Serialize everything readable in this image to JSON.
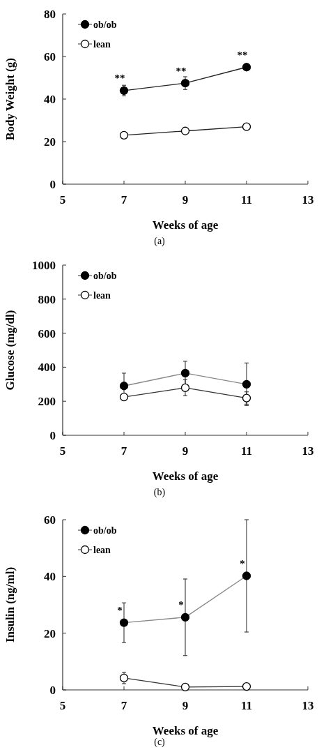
{
  "chart_data": [
    {
      "type": "line",
      "xlabel": "Weeks  of age",
      "ylabel": "Body Weight (g)",
      "x": [
        7,
        9,
        11
      ],
      "xlim": [
        5,
        13
      ],
      "xticks": [
        5,
        7,
        9,
        11,
        13
      ],
      "ylim": [
        0,
        80
      ],
      "yticks": [
        0,
        20,
        40,
        60,
        80
      ],
      "marker": "circle",
      "legend": "top left",
      "grid": false,
      "series": [
        {
          "name": "ob/ob",
          "color": "#000000",
          "values": [
            44,
            47.5,
            55
          ],
          "errors": [
            2.5,
            3,
            null
          ]
        },
        {
          "name": "lean",
          "color": "#ffffff",
          "values": [
            23,
            25,
            27
          ]
        }
      ],
      "annotations": [
        {
          "text": "**",
          "x": 7,
          "y": 44
        },
        {
          "text": "**",
          "x": 9,
          "y": 47.5
        },
        {
          "text": "**",
          "x": 11,
          "y": 55
        },
        "(a)"
      ]
    },
    {
      "type": "line",
      "xlabel": "Weeks  of age",
      "ylabel": "Glucose (mg/dl)",
      "x": [
        7,
        9,
        11
      ],
      "xlim": [
        5,
        13
      ],
      "xticks": [
        5,
        7,
        9,
        11,
        13
      ],
      "ylim": [
        0,
        1000
      ],
      "yticks": [
        0,
        200,
        400,
        600,
        800,
        1000
      ],
      "marker": "circle",
      "legend": "top left",
      "grid": false,
      "series": [
        {
          "name": "ob/ob",
          "color": "#000000",
          "values": [
            290,
            365,
            300
          ],
          "errors": [
            75,
            70,
            125
          ]
        },
        {
          "name": "lean",
          "color": "#ffffff",
          "values": [
            225,
            279,
            219
          ],
          "errors": [
            null,
            47,
            36
          ]
        }
      ],
      "annotations": [
        "(b)"
      ]
    },
    {
      "type": "line",
      "xlabel": "Weeks  of age",
      "ylabel": "Insulin (ng/ml)",
      "x": [
        7,
        9,
        11
      ],
      "xlim": [
        5,
        13
      ],
      "xticks": [
        5,
        7,
        9,
        11,
        13
      ],
      "ylim": [
        0,
        60
      ],
      "yticks": [
        0,
        20,
        40,
        60
      ],
      "marker": "circle",
      "legend": "top left",
      "grid": false,
      "series": [
        {
          "name": "ob/ob",
          "color": "#000000",
          "values": [
            23.7,
            25.6,
            40.2
          ],
          "errors": [
            7,
            13.5,
            19.8
          ]
        },
        {
          "name": "lean",
          "color": "#ffffff",
          "values": [
            4.2,
            1,
            1.2
          ],
          "errors": [
            2,
            null,
            null
          ]
        }
      ],
      "annotations": [
        {
          "text": "*",
          "x": 7,
          "y": 23.7
        },
        {
          "text": "*",
          "x": 9,
          "y": 25.6
        },
        {
          "text": "*",
          "x": 11,
          "y": 40.2
        },
        "(c)"
      ]
    }
  ]
}
